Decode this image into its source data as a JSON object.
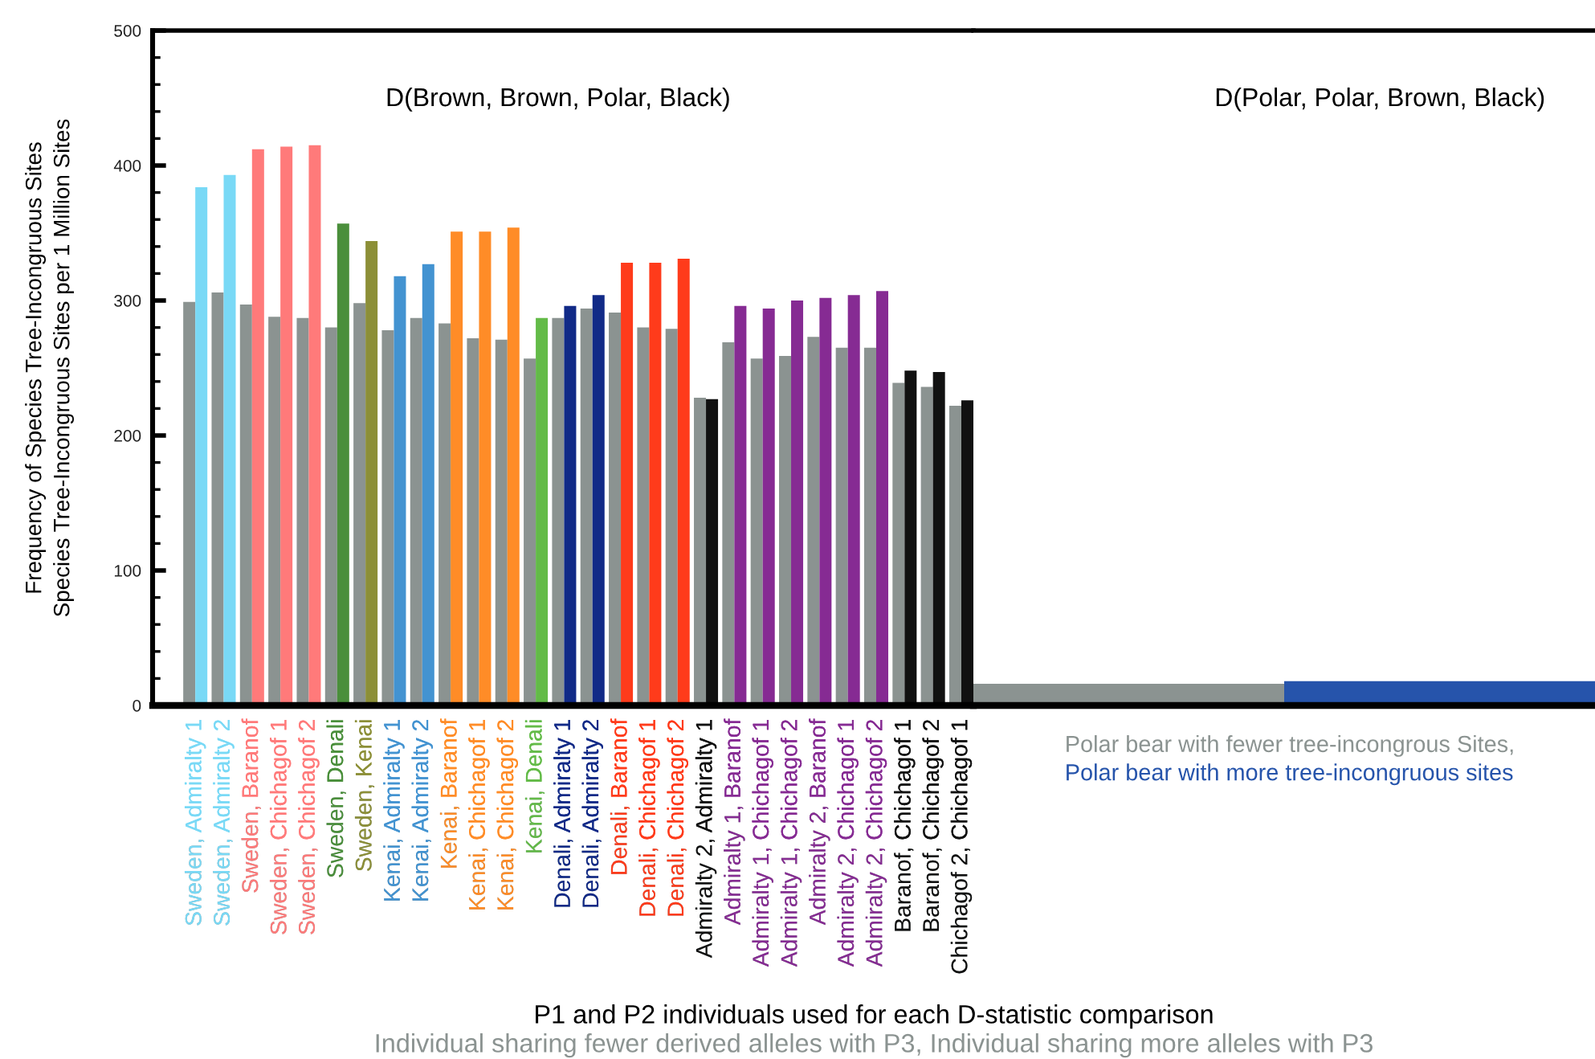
{
  "chart_data": [
    {
      "type": "bar",
      "title": "D(Brown, Brown, Polar, Black)",
      "xlabel": "P1 and P2 individuals used for each D-statistic comparison",
      "ylabel": "Frequency of Species Tree-Incongruous Sites\nSpecies Tree-Incongruous Sites per 1 Million Sites",
      "annotations": [
        "Individual sharing fewer derived alleles with P3, Individual sharing more alleles with P3"
      ],
      "categories": [
        "Sweden, Admiralty 1",
        "Sweden, Admiralty 2",
        "Sweden, Baranof",
        "Sweden, Chichagof 1",
        "Sweden, Chichagof 2",
        "Sweden, Denali",
        "Sweden, Kenai",
        "Kenai, Admiralty 1",
        "Kenai, Admiralty 2",
        "Kenai, Baranof",
        "Kenai, Chichagof 1",
        "Kenai, Chichagof 2",
        "Kenai, Denali",
        "Denali, Admiralty 1",
        "Denali, Admiralty 2",
        "Denali, Baranof",
        "Denali, Chichagof 1",
        "Denali, Chichagof 2",
        "Admiralty 2, Admiralty 1",
        "Admiralty 1, Baranof",
        "Admiralty 1, Chichagof 1",
        "Admiralty 1, Chichagof 2",
        "Admiralty 2, Baranof",
        "Admiralty 2, Chichagof 1",
        "Admiralty 2, Chichagof 2",
        "Baranof, Chichagof 1",
        "Baranof, Chichagof 2",
        "Chichagof 2, Chichagof 1"
      ],
      "series": [
        {
          "color": "#8b9391",
          "values": [
            299,
            306,
            297,
            288,
            287,
            280,
            298,
            278,
            287,
            283,
            272,
            271,
            257,
            287,
            294,
            291,
            280,
            279,
            228,
            269,
            257,
            259,
            273,
            265,
            265,
            239,
            236,
            222
          ]
        },
        {
          "colors": [
            "#79d9f6",
            "#79d9f6",
            "#ff7a7a",
            "#ff7a7a",
            "#ff7a7a",
            "#4a8f3b",
            "#8c8f37",
            "#4393d1",
            "#4393d1",
            "#ff8c27",
            "#ff8c27",
            "#ff8c27",
            "#63bb48",
            "#112a87",
            "#112a87",
            "#ff3b1b",
            "#ff3b1b",
            "#ff3b1b",
            "#111111",
            "#862b93",
            "#862b93",
            "#862b93",
            "#862b93",
            "#862b93",
            "#862b93",
            "#111111",
            "#111111",
            "#111111"
          ],
          "values": [
            384,
            393,
            412,
            414,
            415,
            357,
            344,
            318,
            327,
            351,
            351,
            354,
            287,
            296,
            304,
            328,
            328,
            331,
            227,
            296,
            294,
            300,
            302,
            304,
            307,
            248,
            247,
            226
          ]
        }
      ],
      "ylim": [
        0,
        500
      ],
      "yticks": [
        0,
        {
          "value": 20,
          "label": null
        },
        {
          "value": 40,
          "label": null
        },
        {
          "value": 60,
          "label": null
        },
        {
          "value": 80,
          "label": null
        },
        100,
        {
          "value": 120,
          "label": null
        },
        {
          "value": 140,
          "label": null
        },
        {
          "value": 160,
          "label": null
        },
        {
          "value": 180,
          "label": null
        },
        200,
        {
          "value": 220,
          "label": null
        },
        {
          "value": 240,
          "label": null
        },
        {
          "value": 260,
          "label": null
        },
        {
          "value": 280,
          "label": null
        },
        300,
        {
          "value": 320,
          "label": null
        },
        {
          "value": 340,
          "label": null
        },
        {
          "value": 360,
          "label": null
        },
        {
          "value": 380,
          "label": null
        },
        400,
        {
          "value": 420,
          "label": null
        },
        {
          "value": 440,
          "label": null
        },
        {
          "value": 460,
          "label": null
        },
        {
          "value": 480,
          "label": null
        },
        500
      ]
    },
    {
      "type": "bar",
      "title": "D(Polar, Polar, Brown, Black)",
      "categories": [
        null
      ],
      "series": [
        {
          "name": "Polar bear with fewer tree-incongrous Sites,",
          "color": "#8b9391",
          "values": [
            16
          ]
        },
        {
          "name": "Polar bear with more tree-incongruous sites",
          "color": "#2654ab",
          "values": [
            18
          ]
        }
      ],
      "ylim": [
        0,
        500
      ],
      "tick_labels": false
    }
  ]
}
